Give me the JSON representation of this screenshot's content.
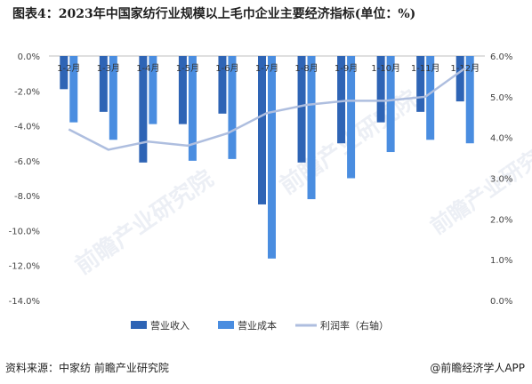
{
  "title": "图表4：2023年中国家纺行业规模以上毛巾企业主要经济指标(单位：%)",
  "source": "资料来源：中家纺 前瞻产业研究院",
  "brand": "@前瞻经济学人APP",
  "watermark": "前瞻产业研究院",
  "colors": {
    "revenue": "#2e64b5",
    "cost": "#4a8de0",
    "profit_rate": "#aebedf"
  },
  "chart_data": {
    "type": "bar",
    "categories": [
      "1-2月",
      "1-3月",
      "1-4月",
      "1-5月",
      "1-6月",
      "1-7月",
      "1-8月",
      "1-9月",
      "1-10月",
      "1-11月",
      "1-12月"
    ],
    "series": [
      {
        "name": "营业收入",
        "type": "bar",
        "axis": "left",
        "values": [
          -1.9,
          -3.2,
          -6.1,
          -3.9,
          -3.3,
          -8.5,
          -6.1,
          -5.0,
          -3.8,
          -3.2,
          -2.6
        ]
      },
      {
        "name": "营业成本",
        "type": "bar",
        "axis": "left",
        "values": [
          -3.8,
          -4.8,
          -3.9,
          -6.0,
          -5.9,
          -11.6,
          -8.2,
          -7.0,
          -5.5,
          -4.8,
          -5.0
        ]
      },
      {
        "name": "利润率（右轴）",
        "type": "line",
        "axis": "right",
        "values": [
          4.2,
          3.7,
          3.9,
          3.8,
          4.1,
          4.6,
          4.8,
          4.9,
          4.9,
          5.0,
          5.7
        ]
      }
    ],
    "left_axis": {
      "ylim": [
        -14,
        0
      ],
      "ticks": [
        "0.0%",
        "-2.0%",
        "-4.0%",
        "-6.0%",
        "-8.0%",
        "-10.0%",
        "-12.0%",
        "-14.0%"
      ]
    },
    "right_axis": {
      "ylim": [
        0,
        6
      ],
      "ticks": [
        "0.0%",
        "1.0%",
        "2.0%",
        "3.0%",
        "4.0%",
        "5.0%",
        "6.0%"
      ]
    },
    "legend": "bottom",
    "grid": false
  }
}
